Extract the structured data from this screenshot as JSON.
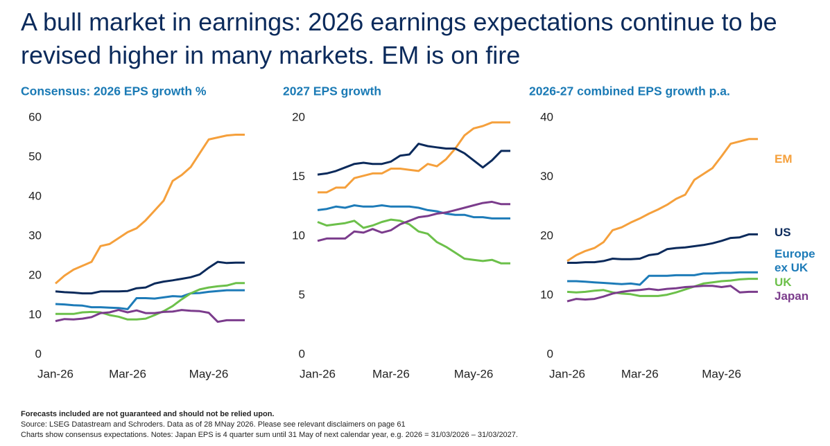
{
  "title": "A bull market in earnings: 2026 earnings expectations continue to be revised higher in many markets. EM is on fire",
  "chart_data": [
    {
      "type": "line",
      "title": "Consensus: 2026 EPS growth %",
      "categories": [
        "Jan-26",
        null,
        null,
        null,
        null,
        null,
        null,
        null,
        "Mar-26",
        null,
        null,
        null,
        null,
        null,
        null,
        null,
        null,
        "May-26",
        null,
        null,
        null,
        null
      ],
      "ylim": [
        0,
        60
      ],
      "yticks": [
        0,
        10,
        20,
        30,
        40,
        50,
        60
      ],
      "series": [
        {
          "color": "#f5a03c",
          "values": [
            18,
            20,
            21.5,
            22.5,
            23.5,
            27.5,
            28,
            29.5,
            31,
            32,
            34,
            36.5,
            39,
            44,
            45.5,
            47.5,
            51,
            54.5,
            55,
            55.5,
            55.7,
            55.7
          ]
        },
        {
          "color": "#0b2a5b",
          "values": [
            16,
            15.8,
            15.7,
            15.5,
            15.5,
            16,
            16,
            16,
            16.1,
            16.8,
            17,
            18,
            18.5,
            18.8,
            19.2,
            19.6,
            20.3,
            22,
            23.5,
            23.2,
            23.3,
            23.3
          ]
        },
        {
          "color": "#1d7bb8",
          "values": [
            12.8,
            12.7,
            12.5,
            12.4,
            12,
            12,
            11.9,
            11.8,
            11.5,
            14.3,
            14.3,
            14.2,
            14.5,
            14.8,
            14.7,
            15.5,
            15.6,
            15.9,
            16.1,
            16.3,
            16.3,
            16.3
          ]
        },
        {
          "color": "#6cc04a",
          "values": [
            10.3,
            10.3,
            10.3,
            10.7,
            10.8,
            10.7,
            10,
            9.6,
            8.9,
            8.9,
            9.1,
            10,
            11,
            12.3,
            14,
            15.5,
            16.5,
            17,
            17.3,
            17.5,
            18.1,
            18.1
          ]
        },
        {
          "color": "#7b3c8c",
          "values": [
            8.5,
            9,
            8.9,
            9.1,
            9.5,
            10.5,
            10.7,
            11.3,
            10.7,
            11.2,
            10.5,
            10.5,
            10.8,
            10.9,
            11.3,
            11.1,
            11,
            10.6,
            8.3,
            8.7,
            8.7,
            8.7
          ]
        }
      ]
    },
    {
      "type": "line",
      "title": "2027 EPS growth",
      "categories": [
        "Jan-26",
        null,
        null,
        null,
        null,
        null,
        null,
        null,
        "Mar-26",
        null,
        null,
        null,
        null,
        null,
        null,
        null,
        null,
        "May-26",
        null,
        null,
        null,
        null
      ],
      "ylim": [
        0,
        20
      ],
      "yticks": [
        0,
        5,
        10,
        15,
        20
      ],
      "series": [
        {
          "color": "#f5a03c",
          "values": [
            13.7,
            13.7,
            14.1,
            14.1,
            14.9,
            15.1,
            15.3,
            15.3,
            15.7,
            15.7,
            15.6,
            15.5,
            16.1,
            15.9,
            16.5,
            17.4,
            18.5,
            19.1,
            19.3,
            19.6,
            19.6,
            19.6
          ]
        },
        {
          "color": "#0b2a5b",
          "values": [
            15.2,
            15.3,
            15.5,
            15.8,
            16.1,
            16.2,
            16.1,
            16.1,
            16.3,
            16.8,
            16.9,
            17.8,
            17.6,
            17.5,
            17.4,
            17.4,
            17,
            16.4,
            15.8,
            16.4,
            17.2,
            17.2
          ]
        },
        {
          "color": "#1d7bb8",
          "values": [
            12.2,
            12.3,
            12.5,
            12.4,
            12.6,
            12.5,
            12.5,
            12.6,
            12.5,
            12.5,
            12.5,
            12.4,
            12.2,
            12.1,
            11.9,
            11.8,
            11.8,
            11.6,
            11.6,
            11.5,
            11.5,
            11.5
          ]
        },
        {
          "color": "#6cc04a",
          "values": [
            11.2,
            10.9,
            11,
            11.1,
            11.3,
            10.7,
            10.9,
            11.2,
            11.4,
            11.3,
            11,
            10.4,
            10.2,
            9.5,
            9.1,
            8.6,
            8.1,
            8,
            7.9,
            8,
            7.7,
            7.7
          ]
        },
        {
          "color": "#7b3c8c",
          "values": [
            9.6,
            9.8,
            9.8,
            9.8,
            10.4,
            10.3,
            10.6,
            10.3,
            10.5,
            11,
            11.3,
            11.6,
            11.7,
            11.9,
            12,
            12.2,
            12.4,
            12.6,
            12.8,
            12.9,
            12.7,
            12.7
          ]
        }
      ]
    },
    {
      "type": "line",
      "title": "2026-27 combined EPS growth p.a.",
      "categories": [
        "Jan-26",
        null,
        null,
        null,
        null,
        null,
        null,
        null,
        "Mar-26",
        null,
        null,
        null,
        null,
        null,
        null,
        null,
        null,
        "May-26",
        null,
        null,
        null,
        null
      ],
      "ylim": [
        0,
        40
      ],
      "yticks": [
        0,
        10,
        20,
        30,
        40
      ],
      "series": [
        {
          "name": "EM",
          "color": "#f5a03c",
          "values": [
            15.8,
            16.8,
            17.5,
            18,
            19,
            21,
            21.5,
            22.3,
            23,
            23.8,
            24.5,
            25.3,
            26.3,
            27,
            29.5,
            30.5,
            31.5,
            33.5,
            35.6,
            36,
            36.4,
            36.4
          ]
        },
        {
          "name": "US",
          "color": "#0b2a5b",
          "values": [
            15.5,
            15.5,
            15.6,
            15.6,
            15.8,
            16.2,
            16.1,
            16.1,
            16.2,
            16.8,
            17,
            17.8,
            18,
            18.1,
            18.3,
            18.5,
            18.8,
            19.2,
            19.7,
            19.8,
            20.3,
            20.3
          ]
        },
        {
          "name": "Europe ex UK",
          "color": "#1d7bb8",
          "values": [
            12.4,
            12.4,
            12.3,
            12.2,
            12.1,
            12,
            11.9,
            12,
            11.8,
            13.3,
            13.3,
            13.3,
            13.4,
            13.4,
            13.4,
            13.7,
            13.7,
            13.8,
            13.8,
            13.9,
            13.9,
            13.9
          ]
        },
        {
          "name": "UK",
          "color": "#6cc04a",
          "values": [
            10.6,
            10.5,
            10.6,
            10.8,
            10.9,
            10.5,
            10.3,
            10.2,
            9.9,
            9.9,
            9.9,
            10.1,
            10.5,
            11,
            11.5,
            12,
            12.2,
            12.4,
            12.5,
            12.7,
            12.8,
            12.8
          ]
        },
        {
          "name": "Japan",
          "color": "#7b3c8c",
          "values": [
            9,
            9.4,
            9.3,
            9.4,
            9.8,
            10.3,
            10.6,
            10.8,
            10.9,
            11.1,
            10.9,
            11.1,
            11.2,
            11.4,
            11.5,
            11.6,
            11.6,
            11.4,
            11.6,
            10.5,
            10.6,
            10.6
          ]
        }
      ]
    }
  ],
  "footnotes": [
    "Forecasts included are not guaranteed and should not be relied upon.",
    "Source: LSEG Datastream and Schroders. Data as of 28 MNay 2026. Please see relevant disclaimers on page 61",
    "Charts show consensus expectations. Notes: Japan EPS is 4 quarter sum until 31 May of next calendar year, e.g. 2026 = 31/03/2026 – 31/03/2027."
  ]
}
